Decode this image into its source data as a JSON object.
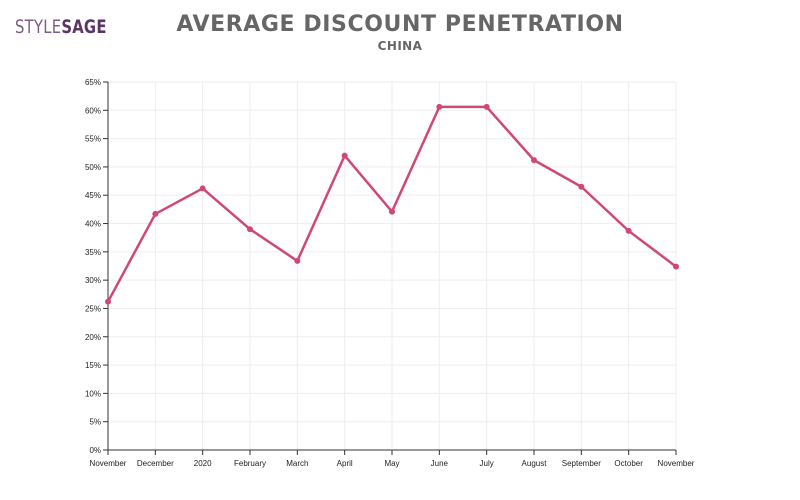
{
  "brand": {
    "part1": "STYLE",
    "part2": "SAGE"
  },
  "header": {
    "title": "AVERAGE DISCOUNT PENETRATION",
    "subtitle": "CHINA"
  },
  "colors": {
    "line": "#d0477a",
    "grid": "#eeeeee",
    "axis": "#333333",
    "brand": "#5b3566",
    "title": "#666666"
  },
  "chart_data": {
    "type": "line",
    "title": "AVERAGE DISCOUNT PENETRATION",
    "subtitle": "CHINA",
    "categories": [
      "November",
      "December",
      "2020",
      "February",
      "March",
      "April",
      "May",
      "June",
      "July",
      "August",
      "September",
      "October",
      "November"
    ],
    "series": [
      {
        "values": [
          26.2,
          41.7,
          46.2,
          39.0,
          33.4,
          52.0,
          42.1,
          60.6,
          60.6,
          51.2,
          46.5,
          38.7,
          32.4
        ]
      }
    ],
    "yticks": [
      "0%",
      "5%",
      "10%",
      "15%",
      "20%",
      "25%",
      "30%",
      "35%",
      "40%",
      "45%",
      "50%",
      "55%",
      "60%",
      "65%"
    ],
    "ylim": [
      0,
      65
    ],
    "grid": true,
    "legend": "none"
  }
}
